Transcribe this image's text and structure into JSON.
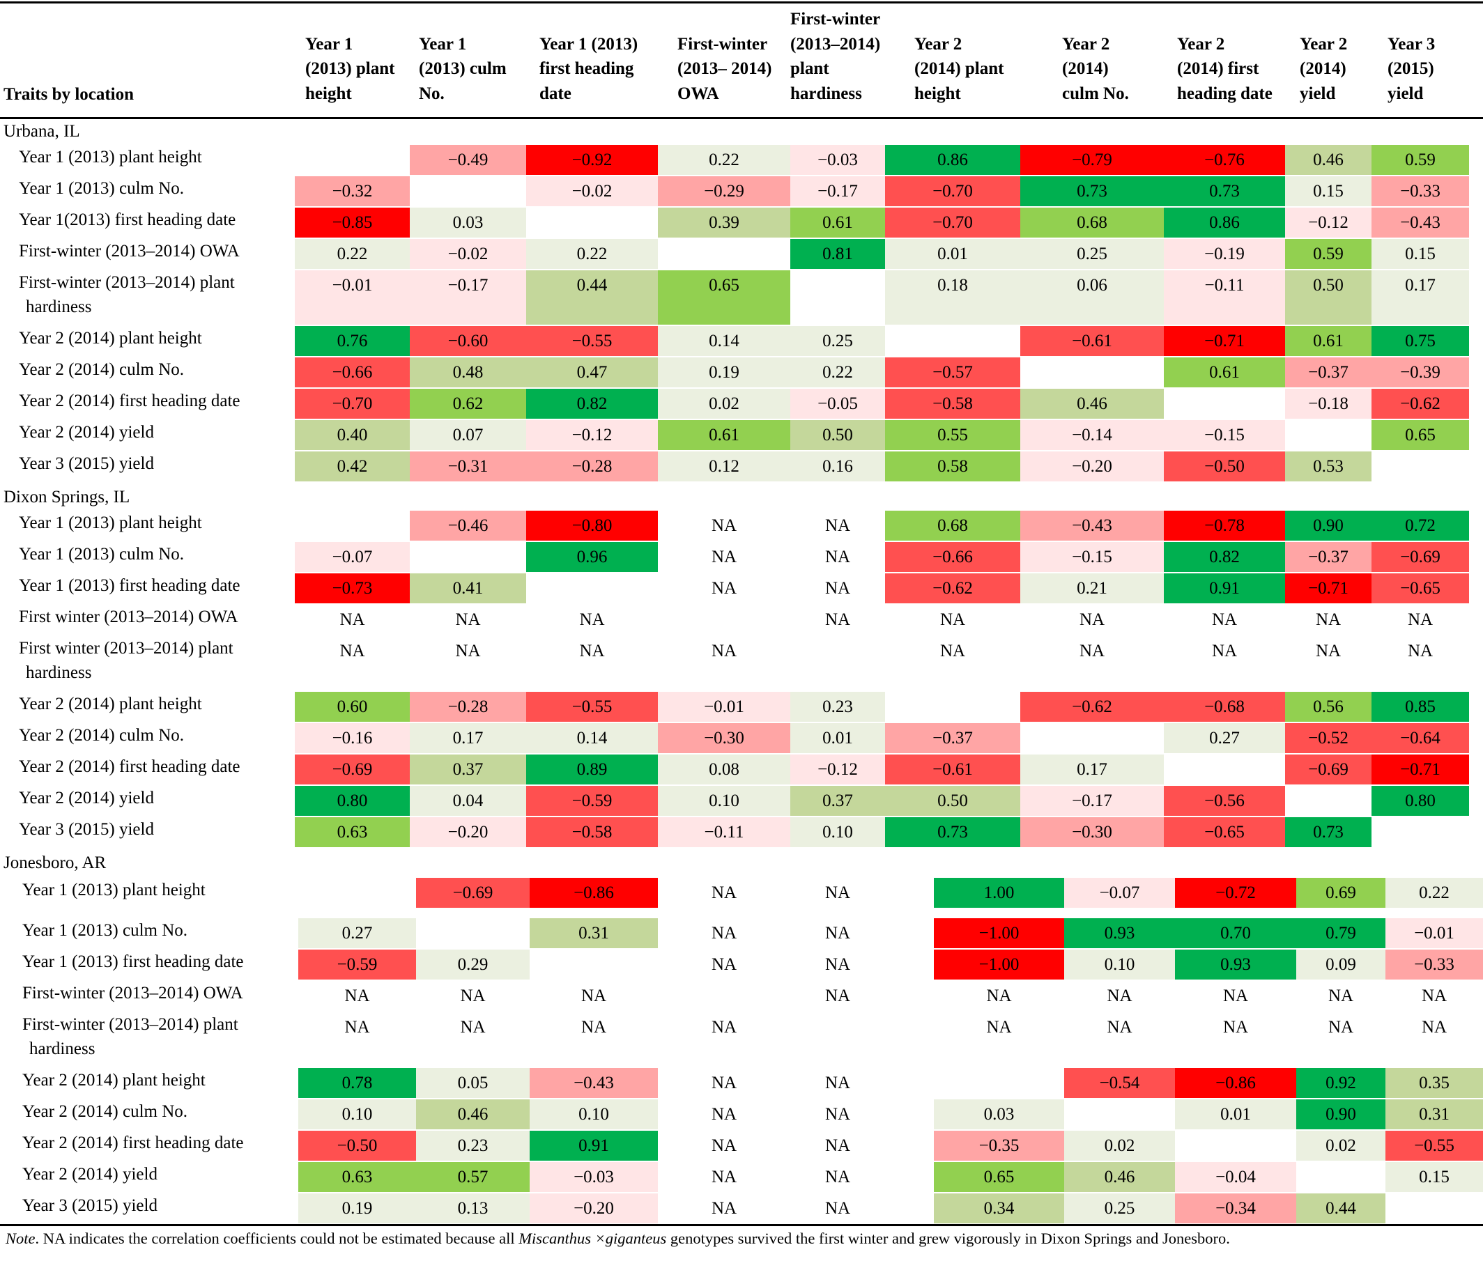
{
  "table": {
    "header_first": "Traits by location",
    "columns": [
      [
        "Year 1",
        "(2013) plant",
        "height"
      ],
      [
        "Year 1",
        "(2013) culm",
        "No."
      ],
      [
        "Year 1 (2013)",
        "first heading",
        "date"
      ],
      [
        "First-winter",
        "(2013– 2014)",
        "OWA"
      ],
      [
        "First-winter",
        "(2013–2014)",
        "plant",
        "hardiness"
      ],
      [
        "Year 2",
        "(2014) plant",
        "height"
      ],
      [
        "Year 2",
        "(2014)",
        "culm No."
      ],
      [
        "Year 2",
        "(2014) first",
        "heading date"
      ],
      [
        "Year 2",
        "(2014)",
        "yield"
      ],
      [
        "Year 3",
        "(2015)",
        "yield"
      ]
    ],
    "colors": {
      "strong_red": "#ff0000",
      "red": "#ff5050",
      "light_red": "#ffa5a5",
      "pale_pink": "#ffe5e6",
      "pale_green": "#ebf0e0",
      "light_green": "#c4d79b",
      "green": "#92d050",
      "strong_green": "#00b050"
    },
    "sections": [
      {
        "location": "Urbana, IL",
        "rows": [
          {
            "label": [
              "Year 1 (2013) plant height"
            ],
            "values": [
              "",
              "−0.49",
              "−0.92",
              "0.22",
              "−0.03",
              "0.86",
              "−0.79",
              "−0.76",
              "0.46",
              "0.59"
            ]
          },
          {
            "label": [
              "Year 1 (2013) culm No."
            ],
            "values": [
              "−0.32",
              "",
              "−0.02",
              "−0.29",
              "−0.17",
              "−0.70",
              "0.73",
              "0.73",
              "0.15",
              "−0.33"
            ]
          },
          {
            "label": [
              "Year 1(2013) first heading date"
            ],
            "values": [
              "−0.85",
              "0.03",
              "",
              "0.39",
              "0.61",
              "−0.70",
              "0.68",
              "0.86",
              "−0.12",
              "−0.43"
            ]
          },
          {
            "label": [
              "First-winter (2013–2014) OWA"
            ],
            "values": [
              "0.22",
              "−0.02",
              "0.22",
              "",
              "0.81",
              "0.01",
              "0.25",
              "−0.19",
              "0.59",
              "0.15"
            ]
          },
          {
            "label": [
              "First-winter (2013–2014) plant",
              "hardiness"
            ],
            "values": [
              "−0.01",
              "−0.17",
              "0.44",
              "0.65",
              "",
              "0.18",
              "0.06",
              "−0.11",
              "0.50",
              "0.17"
            ]
          },
          {
            "label": [
              "Year 2 (2014) plant height"
            ],
            "values": [
              "0.76",
              "−0.60",
              "−0.55",
              "0.14",
              "0.25",
              "",
              "−0.61",
              "−0.71",
              "0.61",
              "0.75"
            ]
          },
          {
            "label": [
              "Year 2 (2014) culm No."
            ],
            "values": [
              "−0.66",
              "0.48",
              "0.47",
              "0.19",
              "0.22",
              "−0.57",
              "",
              "0.61",
              "−0.37",
              "−0.39"
            ]
          },
          {
            "label": [
              "Year 2 (2014) first heading date"
            ],
            "values": [
              "−0.70",
              "0.62",
              "0.82",
              "0.02",
              "−0.05",
              "−0.58",
              "0.46",
              "",
              "−0.18",
              "−0.62"
            ]
          },
          {
            "label": [
              "Year 2 (2014) yield"
            ],
            "values": [
              "0.40",
              "0.07",
              "−0.12",
              "0.61",
              "0.50",
              "0.55",
              "−0.14",
              "−0.15",
              "",
              "0.65"
            ]
          },
          {
            "label": [
              "Year 3 (2015) yield"
            ],
            "values": [
              "0.42",
              "−0.31",
              "−0.28",
              "0.12",
              "0.16",
              "0.58",
              "−0.20",
              "−0.50",
              "0.53",
              ""
            ]
          }
        ]
      },
      {
        "location": "Dixon Springs, IL",
        "rows": [
          {
            "label": [
              "Year 1 (2013) plant height"
            ],
            "values": [
              "",
              "−0.46",
              "−0.80",
              "NA",
              "NA",
              "0.68",
              "−0.43",
              "−0.78",
              "0.90",
              "0.72"
            ]
          },
          {
            "label": [
              "Year 1 (2013) culm No."
            ],
            "values": [
              "−0.07",
              "",
              "0.96",
              "NA",
              "NA",
              "−0.66",
              "−0.15",
              "0.82",
              "−0.37",
              "−0.69"
            ]
          },
          {
            "label": [
              "Year 1 (2013) first heading date"
            ],
            "values": [
              "−0.73",
              "0.41",
              "",
              "NA",
              "NA",
              "−0.62",
              "0.21",
              "0.91",
              "−0.71",
              "−0.65"
            ]
          },
          {
            "label": [
              "First winter (2013–2014) OWA"
            ],
            "values": [
              "NA",
              "NA",
              "NA",
              "",
              "NA",
              "NA",
              "NA",
              "NA",
              "NA",
              "NA"
            ]
          },
          {
            "label": [
              "First winter (2013–2014) plant",
              "hardiness"
            ],
            "values": [
              "NA",
              "NA",
              "NA",
              "NA",
              "",
              "NA",
              "NA",
              "NA",
              "NA",
              "NA"
            ]
          },
          {
            "label": [
              "Year 2 (2014) plant height"
            ],
            "values": [
              "0.60",
              "−0.28",
              "−0.55",
              "−0.01",
              "0.23",
              "",
              "−0.62",
              "−0.68",
              "0.56",
              "0.85"
            ]
          },
          {
            "label": [
              "Year 2 (2014) culm No."
            ],
            "values": [
              "−0.16",
              "0.17",
              "0.14",
              "−0.30",
              "0.01",
              "−0.37",
              "",
              "0.27",
              "−0.52",
              "−0.64"
            ]
          },
          {
            "label": [
              "Year 2 (2014) first heading date"
            ],
            "values": [
              "−0.69",
              "0.37",
              "0.89",
              "0.08",
              "−0.12",
              "−0.61",
              "0.17",
              "",
              "−0.69",
              "−0.71"
            ]
          },
          {
            "label": [
              "Year 2 (2014) yield"
            ],
            "values": [
              "0.80",
              "0.04",
              "−0.59",
              "0.10",
              "0.37",
              "0.50",
              "−0.17",
              "−0.56",
              "",
              "0.80"
            ]
          },
          {
            "label": [
              "Year 3 (2015) yield"
            ],
            "values": [
              "0.63",
              "−0.20",
              "−0.58",
              "−0.11",
              "0.10",
              "0.73",
              "−0.30",
              "−0.65",
              "0.73",
              ""
            ]
          }
        ]
      },
      {
        "location": "Jonesboro, AR",
        "rows": [
          {
            "label": [
              "Year 1 (2013) plant height"
            ],
            "values": [
              "",
              "−0.69",
              "−0.86",
              "NA",
              "NA",
              "1.00",
              "−0.07",
              "−0.72",
              "0.69",
              "0.22"
            ]
          },
          {
            "label": [
              "Year 1 (2013) culm No."
            ],
            "values": [
              "0.27",
              "",
              "0.31",
              "NA",
              "NA",
              "−1.00",
              "0.93",
              "0.70",
              "0.79",
              "−0.01"
            ]
          },
          {
            "label": [
              "Year 1 (2013) first heading date"
            ],
            "values": [
              "−0.59",
              "0.29",
              "",
              "NA",
              "NA",
              "−1.00",
              "0.10",
              "0.93",
              "0.09",
              "−0.33"
            ]
          },
          {
            "label": [
              "First-winter (2013–2014) OWA"
            ],
            "values": [
              "NA",
              "NA",
              "NA",
              "",
              "NA",
              "NA",
              "NA",
              "NA",
              "NA",
              "NA"
            ]
          },
          {
            "label": [
              "First-winter (2013–2014) plant",
              "hardiness"
            ],
            "values": [
              "NA",
              "NA",
              "NA",
              "NA",
              "",
              "NA",
              "NA",
              "NA",
              "NA",
              "NA"
            ]
          },
          {
            "label": [
              "Year 2 (2014) plant height"
            ],
            "values": [
              "0.78",
              "0.05",
              "−0.43",
              "NA",
              "NA",
              "",
              "−0.54",
              "−0.86",
              "0.92",
              "0.35"
            ]
          },
          {
            "label": [
              "Year 2 (2014) culm No."
            ],
            "values": [
              "0.10",
              "0.46",
              "0.10",
              "NA",
              "NA",
              "0.03",
              "",
              "0.01",
              "0.90",
              "0.31"
            ]
          },
          {
            "label": [
              "Year 2 (2014) first heading date"
            ],
            "values": [
              "−0.50",
              "0.23",
              "0.91",
              "NA",
              "NA",
              "−0.35",
              "0.02",
              "",
              "0.02",
              "−0.55"
            ]
          },
          {
            "label": [
              "Year 2 (2014) yield"
            ],
            "values": [
              "0.63",
              "0.57",
              "−0.03",
              "NA",
              "NA",
              "0.65",
              "0.46",
              "−0.04",
              "",
              "0.15"
            ]
          },
          {
            "label": [
              "Year 3 (2015) yield"
            ],
            "values": [
              "0.19",
              "0.13",
              "−0.20",
              "NA",
              "NA",
              "0.34",
              "0.25",
              "−0.34",
              "0.44",
              ""
            ]
          }
        ]
      }
    ],
    "note": {
      "label": "Note",
      "text_before": ". NA indicates the correlation coefficients could not be estimated because all ",
      "species": "Miscanthus ×giganteus",
      "text_after": " genotypes survived the first winter and grew vigorously in Dixon Springs and Jonesboro."
    }
  }
}
